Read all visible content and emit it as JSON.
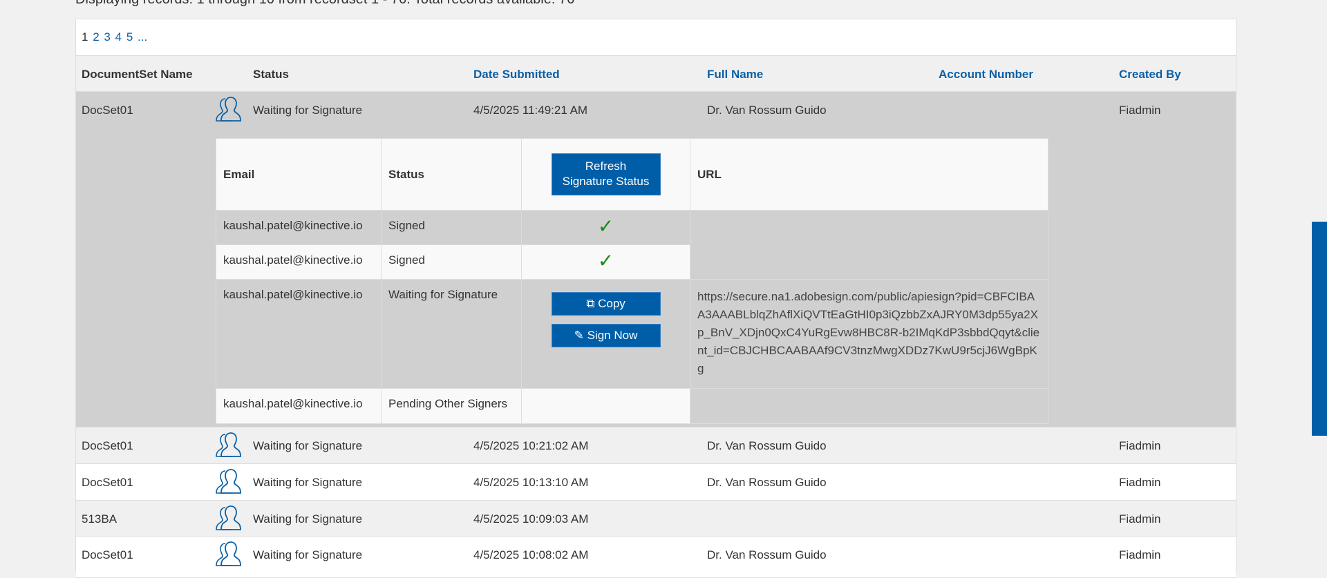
{
  "summary": "Displaying records: 1 through 10 from recordset 1 - 76. Total records available: 76",
  "pager": {
    "pages": [
      "1",
      "2",
      "3",
      "4",
      "5",
      "..."
    ],
    "current": "1"
  },
  "columns": {
    "name": "DocumentSet Name",
    "status": "Status",
    "date": "Date Submitted",
    "full_name": "Full Name",
    "account": "Account Number",
    "created_by": "Created By"
  },
  "rows": [
    {
      "name": "DocSet01",
      "status": "Waiting for Signature",
      "date": "4/5/2025 11:49:21 AM",
      "full_name": "Dr. Van Rossum Guido",
      "account": "",
      "created_by": "Fiadmin"
    },
    {
      "name": "DocSet01",
      "status": "Waiting for Signature",
      "date": "4/5/2025 10:21:02 AM",
      "full_name": "Dr. Van Rossum Guido",
      "account": "",
      "created_by": "Fiadmin"
    },
    {
      "name": "DocSet01",
      "status": "Waiting for Signature",
      "date": "4/5/2025 10:13:10 AM",
      "full_name": "Dr. Van Rossum Guido",
      "account": "",
      "created_by": "Fiadmin"
    },
    {
      "name": "513BA",
      "status": "Waiting for Signature",
      "date": "4/5/2025 10:09:03 AM",
      "full_name": "",
      "account": "",
      "created_by": "Fiadmin"
    },
    {
      "name": "DocSet01",
      "status": "Waiting for Signature",
      "date": "4/5/2025 10:08:02 AM",
      "full_name": "Dr. Van Rossum Guido",
      "account": "",
      "created_by": "Fiadmin"
    }
  ],
  "signers": {
    "headers": {
      "email": "Email",
      "status": "Status",
      "url": "URL"
    },
    "refresh_label_1": "Refresh",
    "refresh_label_2": "Signature Status",
    "copy_label": "Copy",
    "sign_label": "Sign Now",
    "items": [
      {
        "email": "kaushal.patel@kinective.io",
        "status": "Signed"
      },
      {
        "email": "kaushal.patel@kinective.io",
        "status": "Signed"
      },
      {
        "email": "kaushal.patel@kinective.io",
        "status": "Waiting for Signature",
        "url": "https://secure.na1.adobesign.com/public/apiesign?pid=CBFCIBAA3AAABLblqZhAflXiQVTtEaGtHI0p3iQzbbZxAJRY0M3dp55ya2Xp_BnV_XDjn0QxC4YuRgEvw8HBC8R-b2IMqKdP3sbbdQqyt&client_id=CBJCHBCAABAAf9CV3tnzMwgXDDz7KwU9r5cjJ6WgBpKg"
      },
      {
        "email": "kaushal.patel@kinective.io",
        "status": "Pending Other Signers"
      }
    ]
  },
  "colors": {
    "accent": "#005ea8",
    "signed_check": "#1a8a1a"
  }
}
